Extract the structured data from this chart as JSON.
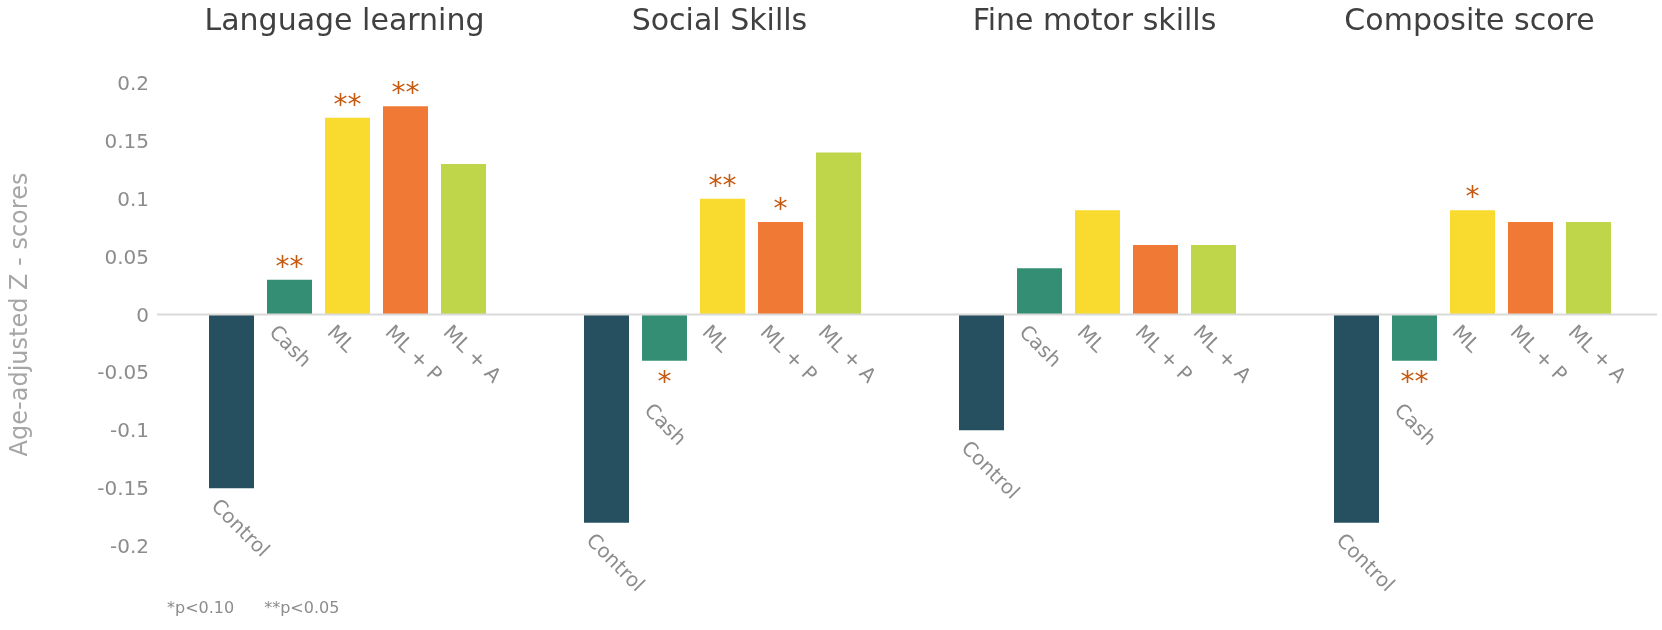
{
  "chart_data": [
    {
      "type": "bar",
      "title": "Language learning",
      "ylabel": "Age-adjusted Z - scores",
      "categories": [
        "Control",
        "Cash",
        "ML",
        "ML + P",
        "ML + A"
      ],
      "values": [
        -0.15,
        0.03,
        0.17,
        0.18,
        0.13
      ],
      "colors": [
        "#264f5f",
        "#338e74",
        "#f9da2e",
        "#f07a35",
        "#bfd64a"
      ],
      "value_labels": [
        null,
        "**",
        "**",
        "**",
        null
      ],
      "ylim": [
        -0.2,
        0.2
      ],
      "yticks": [
        -0.2,
        -0.15,
        -0.1,
        -0.05,
        0,
        0.05,
        0.1,
        0.15,
        0.2
      ],
      "grid": false,
      "annotations": [
        "*p<0.10",
        "**p<0.05"
      ]
    },
    {
      "type": "bar",
      "title": "Social Skills",
      "categories": [
        "Control",
        "Cash",
        "ML",
        "ML + P",
        "ML + A"
      ],
      "values": [
        -0.18,
        -0.04,
        0.1,
        0.08,
        0.14
      ],
      "colors": [
        "#264f5f",
        "#338e74",
        "#f9da2e",
        "#f07a35",
        "#bfd64a"
      ],
      "value_labels": [
        null,
        "*",
        "**",
        "*",
        null
      ],
      "ylim": [
        -0.2,
        0.2
      ],
      "yticks": [
        -0.2,
        -0.15,
        -0.1,
        -0.05,
        0,
        0.05,
        0.1,
        0.15,
        0.2
      ],
      "grid": false,
      "tick_labels": "x"
    },
    {
      "type": "bar",
      "title": "Fine motor skills",
      "categories": [
        "Control",
        "Cash",
        "ML",
        "ML + P",
        "ML + A"
      ],
      "values": [
        -0.1,
        0.04,
        0.09,
        0.06,
        0.06
      ],
      "colors": [
        "#264f5f",
        "#338e74",
        "#f9da2e",
        "#f07a35",
        "#bfd64a"
      ],
      "ylim": [
        -0.2,
        0.2
      ],
      "yticks": [
        -0.2,
        -0.15,
        -0.1,
        -0.05,
        0,
        0.05,
        0.1,
        0.15,
        0.2
      ],
      "grid": false,
      "tick_labels": "x"
    },
    {
      "type": "bar",
      "title": "Composite score",
      "categories": [
        "Control",
        "Cash",
        "ML",
        "ML + P",
        "ML + A"
      ],
      "values": [
        -0.18,
        -0.04,
        0.09,
        0.08,
        0.08
      ],
      "colors": [
        "#264f5f",
        "#338e74",
        "#f9da2e",
        "#f07a35",
        "#bfd64a"
      ],
      "value_labels": [
        null,
        "**",
        "*",
        null,
        null
      ],
      "ylim": [
        -0.2,
        0.2
      ],
      "yticks": [
        -0.2,
        -0.15,
        -0.1,
        -0.05,
        0,
        0.05,
        0.1,
        0.15,
        0.2
      ],
      "grid": false,
      "tick_labels": "x"
    }
  ]
}
